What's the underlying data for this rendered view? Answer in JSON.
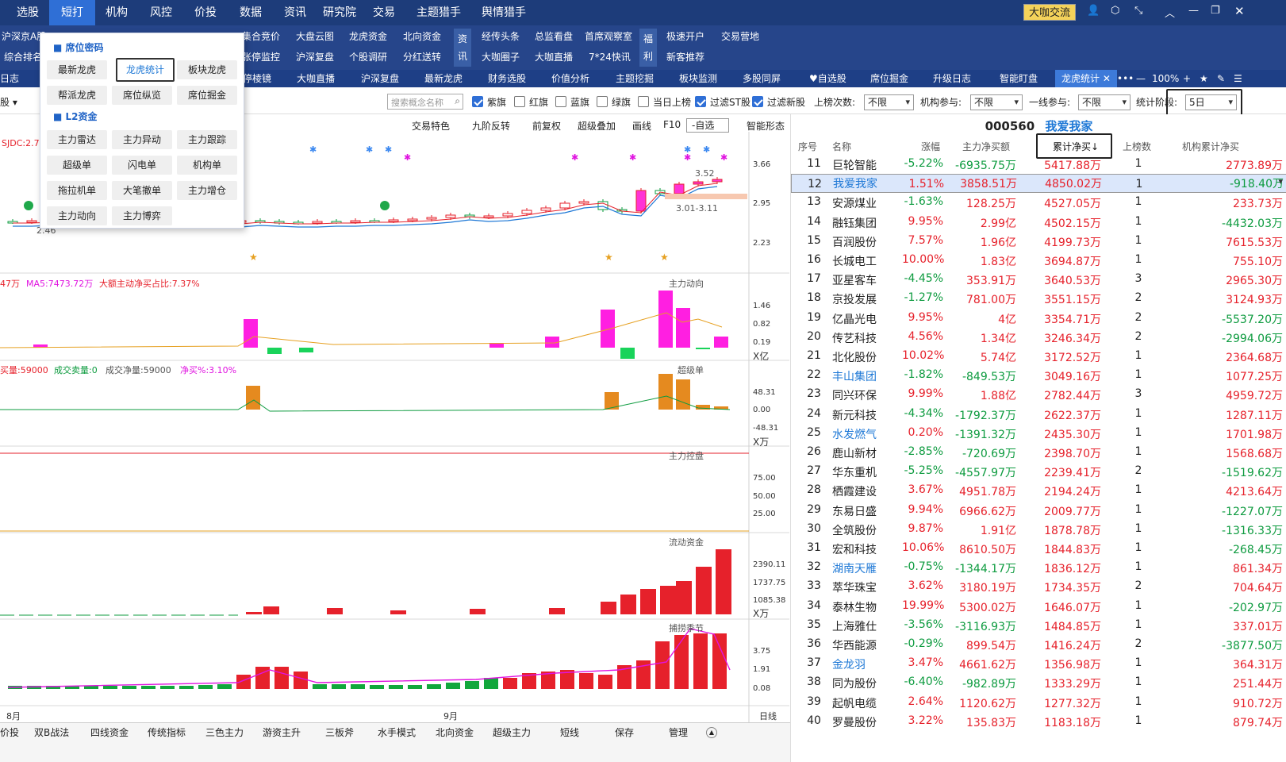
{
  "top_menu": [
    "选股",
    "短打",
    "机构",
    "风控",
    "价投",
    "数据",
    "资讯",
    "研究院",
    "交易",
    "主题猎手",
    "舆情猎手"
  ],
  "top_right": {
    "badge": "大咖交流"
  },
  "sub_row1": [
    "沪深京A股",
    "",
    "集合竞价",
    "大盘云图",
    "龙虎资金",
    "北向资金",
    "经传头条",
    "总监看盘",
    "首席观察室",
    "极速开户",
    "交易营地"
  ],
  "sub_row2": [
    "综合排名",
    "",
    "张停监控",
    "沪深复盘",
    "个股调研",
    "分红送转",
    "大咖圈子",
    "大咖直播",
    "7*24快讯",
    "新客推荐"
  ],
  "sub_vtags": [
    "资讯",
    "福利"
  ],
  "nav": [
    "日志",
    "停棱镜",
    "大咖直播",
    "沪深复盘",
    "最新龙虎",
    "财务选股",
    "价值分析",
    "主题挖掘",
    "板块监测",
    "多股同屏",
    "自选股",
    "席位掘金",
    "升级日志",
    "智能盯盘",
    "龙虎统计"
  ],
  "nav_right": {
    "zoom": "100%"
  },
  "dropdown": {
    "sec1": "席位密码",
    "sec1_items": [
      "最新龙虎",
      "龙虎统计",
      "板块龙虎",
      "帮派龙虎",
      "席位纵览",
      "席位掘金"
    ],
    "sec2": "L2资金",
    "sec2_items": [
      "主力雷达",
      "主力异动",
      "主力跟踪",
      "超级单",
      "闪电单",
      "机构单",
      "拖拉机单",
      "大笔撤单",
      "主力增仓",
      "主力动向",
      "主力博弈"
    ]
  },
  "filters": {
    "search_placeholder": "搜索概念名称",
    "checks": [
      {
        "label": "紫旗",
        "on": true
      },
      {
        "label": "红旗",
        "on": false
      },
      {
        "label": "蓝旗",
        "on": false
      },
      {
        "label": "绿旗",
        "on": false
      },
      {
        "label": "当日上榜",
        "on": false
      },
      {
        "label": "过滤ST股",
        "on": true
      },
      {
        "label": "过滤新股",
        "on": true
      }
    ],
    "count_label": "上榜次数:",
    "count_val": "不限",
    "inst_label": "机构参与:",
    "inst_val": "不限",
    "line_label": "一线参与:",
    "line_val": "不限",
    "period_label": "统计阶段:",
    "period_val": "5日"
  },
  "chart_toolbar": [
    "交易特色",
    "九阶反转",
    "前复权",
    "超级叠加",
    "画线",
    "F10",
    "-自选",
    "智能形态"
  ],
  "chart_labels": {
    "k_tag": "SJDC:2.7",
    "k_hi": "3.52",
    "k_range": "3.01-3.11",
    "k_low": "2.46",
    "p2_info1": "47万",
    "p2_info2": "MA5:7473.72万",
    "p2_info3": "大额主动净买占比:7.37%",
    "p2_title": "主力动向",
    "p3_info1": "买量:59000",
    "p3_info2": "成交卖量:0",
    "p3_info3": "成交净量:59000",
    "p3_info4": "净买%:3.10%",
    "p3_title": "超级单",
    "p4_title": "主力控盘",
    "p5_title": "流动资金",
    "p6_title": "捕捞季节",
    "month1": "8月",
    "month2": "9月",
    "period": "日线"
  },
  "y_labels": {
    "k": [
      "3.66",
      "2.95",
      "2.23"
    ],
    "p2": [
      "1.46",
      "0.82",
      "0.19",
      "X亿"
    ],
    "p3": [
      "48.31",
      "0.00",
      "-48.31",
      "X万"
    ],
    "p4": [
      "75.00",
      "50.00",
      "25.00"
    ],
    "p5": [
      "2390.11",
      "1737.75",
      "1085.38",
      "X万"
    ],
    "p6": [
      "3.75",
      "1.91",
      "0.08"
    ]
  },
  "bottom_tabs": [
    "价投",
    "双B战法",
    "四线资金",
    "传统指标",
    "三色主力",
    "游资主升",
    "三板斧",
    "水手模式",
    "北向资金",
    "超级主力",
    "短线",
    "保存",
    "管理"
  ],
  "stock": {
    "code": "000560",
    "name": "我爱我家"
  },
  "table": {
    "headers": [
      "序号",
      "名称",
      "涨幅",
      "主力净买额",
      "累计净买↓",
      "上榜数",
      "机构累计净买"
    ],
    "rows": [
      [
        "11",
        "巨轮智能",
        "-5.22%",
        "-6935.75万",
        "5417.88万",
        "1",
        "2773.89万"
      ],
      [
        "12",
        "我爱我家",
        "1.51%",
        "3858.51万",
        "4850.02万",
        "1",
        "-918.40万"
      ],
      [
        "13",
        "安源煤业",
        "-1.63%",
        "128.25万",
        "4527.05万",
        "1",
        "233.73万"
      ],
      [
        "14",
        "融钰集团",
        "9.95%",
        "2.99亿",
        "4502.15万",
        "1",
        "-4432.03万"
      ],
      [
        "15",
        "百润股份",
        "7.57%",
        "1.96亿",
        "4199.73万",
        "1",
        "7615.53万"
      ],
      [
        "16",
        "长城电工",
        "10.00%",
        "1.83亿",
        "3694.87万",
        "1",
        "755.10万"
      ],
      [
        "17",
        "亚星客车",
        "-4.45%",
        "353.91万",
        "3640.53万",
        "3",
        "2965.30万"
      ],
      [
        "18",
        "京投发展",
        "-1.27%",
        "781.00万",
        "3551.15万",
        "2",
        "3124.93万"
      ],
      [
        "19",
        "亿晶光电",
        "9.95%",
        "4亿",
        "3354.71万",
        "2",
        "-5537.20万"
      ],
      [
        "20",
        "传艺科技",
        "4.56%",
        "1.34亿",
        "3246.34万",
        "2",
        "-2994.06万"
      ],
      [
        "21",
        "北化股份",
        "10.02%",
        "5.74亿",
        "3172.52万",
        "1",
        "2364.68万"
      ],
      [
        "22",
        "丰山集团",
        "-1.82%",
        "-849.53万",
        "3049.16万",
        "1",
        "1077.25万"
      ],
      [
        "23",
        "同兴环保",
        "9.99%",
        "1.88亿",
        "2782.44万",
        "3",
        "4959.72万"
      ],
      [
        "24",
        "新元科技",
        "-4.34%",
        "-1792.37万",
        "2622.37万",
        "1",
        "1287.11万"
      ],
      [
        "25",
        "水发燃气",
        "0.20%",
        "-1391.32万",
        "2435.30万",
        "1",
        "1701.98万"
      ],
      [
        "26",
        "鹿山新材",
        "-2.85%",
        "-720.69万",
        "2398.70万",
        "1",
        "1568.68万"
      ],
      [
        "27",
        "华东重机",
        "-5.25%",
        "-4557.97万",
        "2239.41万",
        "2",
        "-1519.62万"
      ],
      [
        "28",
        "栖霞建设",
        "3.67%",
        "4951.78万",
        "2194.24万",
        "1",
        "4213.64万"
      ],
      [
        "29",
        "东易日盛",
        "9.94%",
        "6966.62万",
        "2009.77万",
        "1",
        "-1227.07万"
      ],
      [
        "30",
        "全筑股份",
        "9.87%",
        "1.91亿",
        "1878.78万",
        "1",
        "-1316.33万"
      ],
      [
        "31",
        "宏和科技",
        "10.06%",
        "8610.50万",
        "1844.83万",
        "1",
        "-268.45万"
      ],
      [
        "32",
        "湖南天雁",
        "-0.75%",
        "-1344.17万",
        "1836.12万",
        "1",
        "861.34万"
      ],
      [
        "33",
        "萃华珠宝",
        "3.62%",
        "3180.19万",
        "1734.35万",
        "2",
        "704.64万"
      ],
      [
        "34",
        "泰林生物",
        "19.99%",
        "5300.02万",
        "1646.07万",
        "1",
        "-202.97万"
      ],
      [
        "35",
        "上海雅仕",
        "-3.56%",
        "-3116.93万",
        "1484.85万",
        "1",
        "337.01万"
      ],
      [
        "36",
        "华西能源",
        "-0.29%",
        "899.54万",
        "1416.24万",
        "2",
        "-3877.50万"
      ],
      [
        "37",
        "金龙羽",
        "3.47%",
        "4661.62万",
        "1356.98万",
        "1",
        "364.31万"
      ],
      [
        "38",
        "同为股份",
        "-6.40%",
        "-982.89万",
        "1333.29万",
        "1",
        "251.44万"
      ],
      [
        "39",
        "起帆电缆",
        "2.64%",
        "1120.62万",
        "1277.32万",
        "1",
        "910.72万"
      ],
      [
        "40",
        "罗曼股份",
        "3.22%",
        "135.83万",
        "1183.18万",
        "1",
        "879.74万"
      ]
    ],
    "blue_names": [
      "我爱我家",
      "丰山集团",
      "水发燃气",
      "湖南天雁",
      "金龙羽"
    ]
  }
}
